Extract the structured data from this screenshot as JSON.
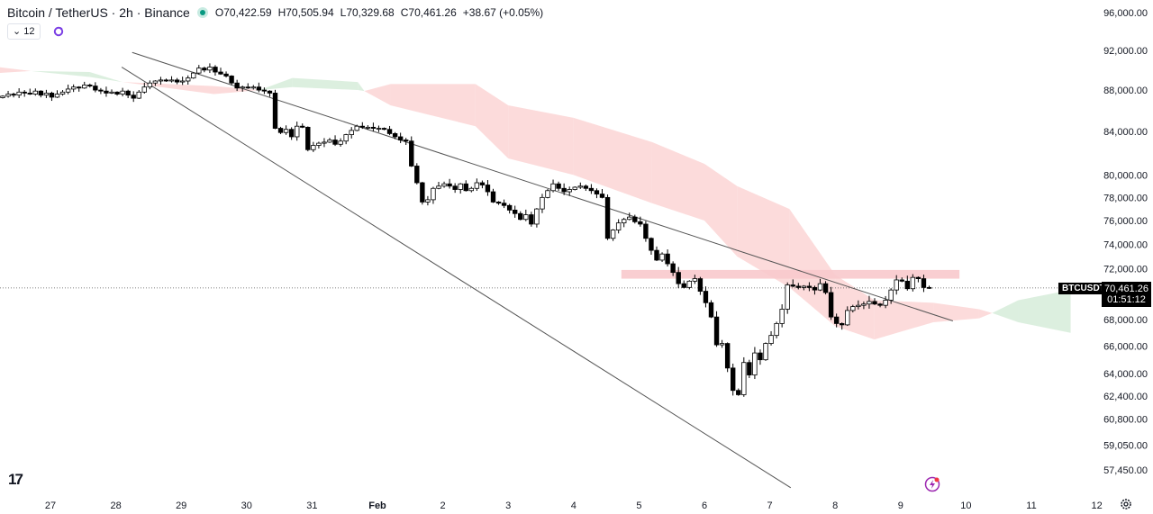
{
  "header": {
    "title": "Bitcoin / TetherUS · 2h · Binance",
    "open_label": "O",
    "open": "70,422.59",
    "high_label": "H",
    "high": "70,505.94",
    "low_label": "L",
    "low": "70,329.68",
    "close_label": "C",
    "close": "70,461.26",
    "change": "+38.67 (+0.05%)",
    "indicator_count": "12",
    "market_status_icon": "green-dot-icon",
    "sync_icon": "sync-icon"
  },
  "price_tag": {
    "symbol": "BTCUSDT",
    "price": "70,461.26",
    "countdown": "01:51:12"
  },
  "colors": {
    "bull_body": "#ffffff",
    "bear_body": "#000000",
    "cloud_bear": "#fbd5d5",
    "cloud_bull": "#d6ecd9",
    "zone": "#f8c9cc",
    "trendline": "#555555"
  },
  "chart_data": {
    "type": "candlestick",
    "symbol": "BTCUSDT",
    "interval": "2h",
    "scale": "log",
    "ylim": [
      56300,
      96000
    ],
    "first_candle_day": 26.27,
    "candles_per_day": 12,
    "closes": [
      87400,
      87600,
      87500,
      87800,
      87700,
      87600,
      87900,
      87500,
      87700,
      87300,
      87600,
      87800,
      88100,
      88300,
      88200,
      88500,
      88400,
      88000,
      87900,
      87700,
      87800,
      87600,
      87900,
      87500,
      87200,
      87800,
      88300,
      88700,
      88900,
      89000,
      88900,
      89000,
      88800,
      88900,
      89200,
      89700,
      90200,
      90000,
      90300,
      89800,
      89600,
      89400,
      88700,
      88200,
      88300,
      88200,
      88300,
      88000,
      87900,
      87700,
      84300,
      83900,
      84200,
      83500,
      84500,
      84400,
      82300,
      82700,
      82900,
      83000,
      83200,
      82800,
      83100,
      83700,
      84100,
      84500,
      84400,
      84400,
      84300,
      84300,
      84200,
      83800,
      83500,
      83200,
      83100,
      80800,
      79300,
      77600,
      77800,
      78800,
      79000,
      79200,
      79000,
      78700,
      79200,
      78600,
      78800,
      79300,
      79100,
      78500,
      77600,
      77500,
      77300,
      76900,
      76600,
      76100,
      76500,
      75700,
      77000,
      78000,
      78600,
      79200,
      78800,
      78500,
      78700,
      78900,
      79000,
      78800,
      78600,
      78300,
      78000,
      74500,
      75200,
      75800,
      76100,
      76300,
      75900,
      75700,
      74500,
      73500,
      72700,
      73200,
      72400,
      71700,
      70800,
      70500,
      71000,
      71200,
      70200,
      69300,
      68200,
      66100,
      66200,
      64400,
      62800,
      62500,
      64800,
      63900,
      65500,
      65000,
      66200,
      66800,
      67700,
      68800,
      70700,
      70600,
      70500,
      70600,
      70500,
      70300,
      70800,
      70100,
      68200,
      67700,
      67600,
      68700,
      69000,
      69100,
      69200,
      69400,
      69200,
      69100,
      69500,
      70300,
      71100,
      71000,
      70400,
      71300,
      71200,
      70500,
      70461.26
    ],
    "last_price": 70461.26,
    "cloud": [
      [
        26.2,
        89700,
        90300
      ],
      [
        26.7,
        89900,
        89900
      ],
      [
        27.6,
        89800,
        89300
      ],
      [
        28.1,
        88800,
        88800
      ],
      [
        29.5,
        87600,
        88400
      ],
      [
        30.2,
        88000,
        88000
      ],
      [
        30.7,
        89200,
        88300
      ],
      [
        31.7,
        88800,
        88000
      ],
      [
        31.8,
        87900,
        87900
      ],
      [
        32.2,
        86500,
        88600
      ],
      [
        33.5,
        84500,
        88600
      ],
      [
        34.0,
        81500,
        86500
      ],
      [
        35.0,
        80000,
        85300
      ],
      [
        36.2,
        77500,
        83000
      ],
      [
        37.0,
        76000,
        81000
      ],
      [
        37.5,
        73000,
        79000
      ],
      [
        38.3,
        70500,
        77000
      ],
      [
        39.0,
        67500,
        71500
      ],
      [
        39.6,
        66500,
        69500
      ],
      [
        40.5,
        67800,
        69300
      ],
      [
        41.2,
        68100,
        68800
      ],
      [
        41.4,
        68500,
        68500
      ],
      [
        41.8,
        69500,
        67800
      ],
      [
        42.6,
        70300,
        67000
      ]
    ],
    "trendlines": [
      {
        "name": "upper-trendline",
        "from": [
          28.25,
          91800
        ],
        "to": [
          40.8,
          67900
        ]
      },
      {
        "name": "lower-trendline",
        "from": [
          28.09,
          90300
        ],
        "to": [
          38.32,
          56300
        ]
      }
    ],
    "resistance_zone": {
      "from_day": 35.73,
      "to_day": 40.9,
      "low": 71200,
      "high": 71900
    },
    "y_ticks": [
      "96,000.00",
      "92,000.00",
      "88,000.00",
      "84,000.00",
      "80,000.00",
      "78,000.00",
      "76,000.00",
      "74,000.00",
      "72,000.00",
      "68,000.00",
      "66,000.00",
      "64,000.00",
      "62,400.00",
      "60,800.00",
      "59,050.00",
      "57,450.00"
    ],
    "x_ticks": [
      {
        "day": 27,
        "label": "27"
      },
      {
        "day": 28,
        "label": "28"
      },
      {
        "day": 29,
        "label": "29"
      },
      {
        "day": 30,
        "label": "30"
      },
      {
        "day": 31,
        "label": "31"
      },
      {
        "day": 32,
        "label": "Feb"
      },
      {
        "day": 33,
        "label": "2"
      },
      {
        "day": 34,
        "label": "3"
      },
      {
        "day": 35,
        "label": "4"
      },
      {
        "day": 36,
        "label": "5"
      },
      {
        "day": 37,
        "label": "6"
      },
      {
        "day": 38,
        "label": "7"
      },
      {
        "day": 39,
        "label": "8"
      },
      {
        "day": 40,
        "label": "9"
      },
      {
        "day": 41,
        "label": "10"
      },
      {
        "day": 42,
        "label": "11"
      },
      {
        "day": 43,
        "label": "12"
      }
    ]
  },
  "footer": {
    "logo": "TV",
    "settings_icon": "gear-icon",
    "alert_icon": "lightning-icon"
  }
}
